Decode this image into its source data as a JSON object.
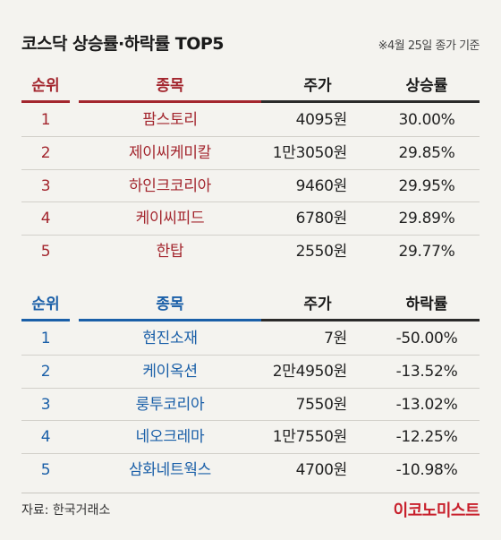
{
  "header": {
    "title": "코스닥 상승률·하락률 TOP5",
    "note": "※4월 25일 종가 기준"
  },
  "gainers": {
    "columns": {
      "rank": "순위",
      "name": "종목",
      "price": "주가",
      "rate": "상승률"
    },
    "rows": [
      {
        "rank": "1",
        "name": "팜스토리",
        "price": "4095원",
        "rate": "30.00%"
      },
      {
        "rank": "2",
        "name": "제이씨케미칼",
        "price": "1만3050원",
        "rate": "29.85%"
      },
      {
        "rank": "3",
        "name": "하인크코리아",
        "price": "9460원",
        "rate": "29.95%"
      },
      {
        "rank": "4",
        "name": "케이씨피드",
        "price": "6780원",
        "rate": "29.89%"
      },
      {
        "rank": "5",
        "name": "한탑",
        "price": "2550원",
        "rate": "29.77%"
      }
    ],
    "accent": "#a3262e"
  },
  "losers": {
    "columns": {
      "rank": "순위",
      "name": "종목",
      "price": "주가",
      "rate": "하락률"
    },
    "rows": [
      {
        "rank": "1",
        "name": "현진소재",
        "price": "7원",
        "rate": "-50.00%"
      },
      {
        "rank": "2",
        "name": "케이옥션",
        "price": "2만4950원",
        "rate": "-13.52%"
      },
      {
        "rank": "3",
        "name": "룽투코리아",
        "price": "7550원",
        "rate": "-13.02%"
      },
      {
        "rank": "4",
        "name": "네오크레마",
        "price": "1만7550원",
        "rate": "-12.25%"
      },
      {
        "rank": "5",
        "name": "삼화네트웍스",
        "price": "4700원",
        "rate": "-10.98%"
      }
    ],
    "accent": "#1a5fa8"
  },
  "footer": {
    "source": "자료: 한국거래소",
    "brand": "이코노미스트",
    "brand_color": "#c8202c"
  }
}
